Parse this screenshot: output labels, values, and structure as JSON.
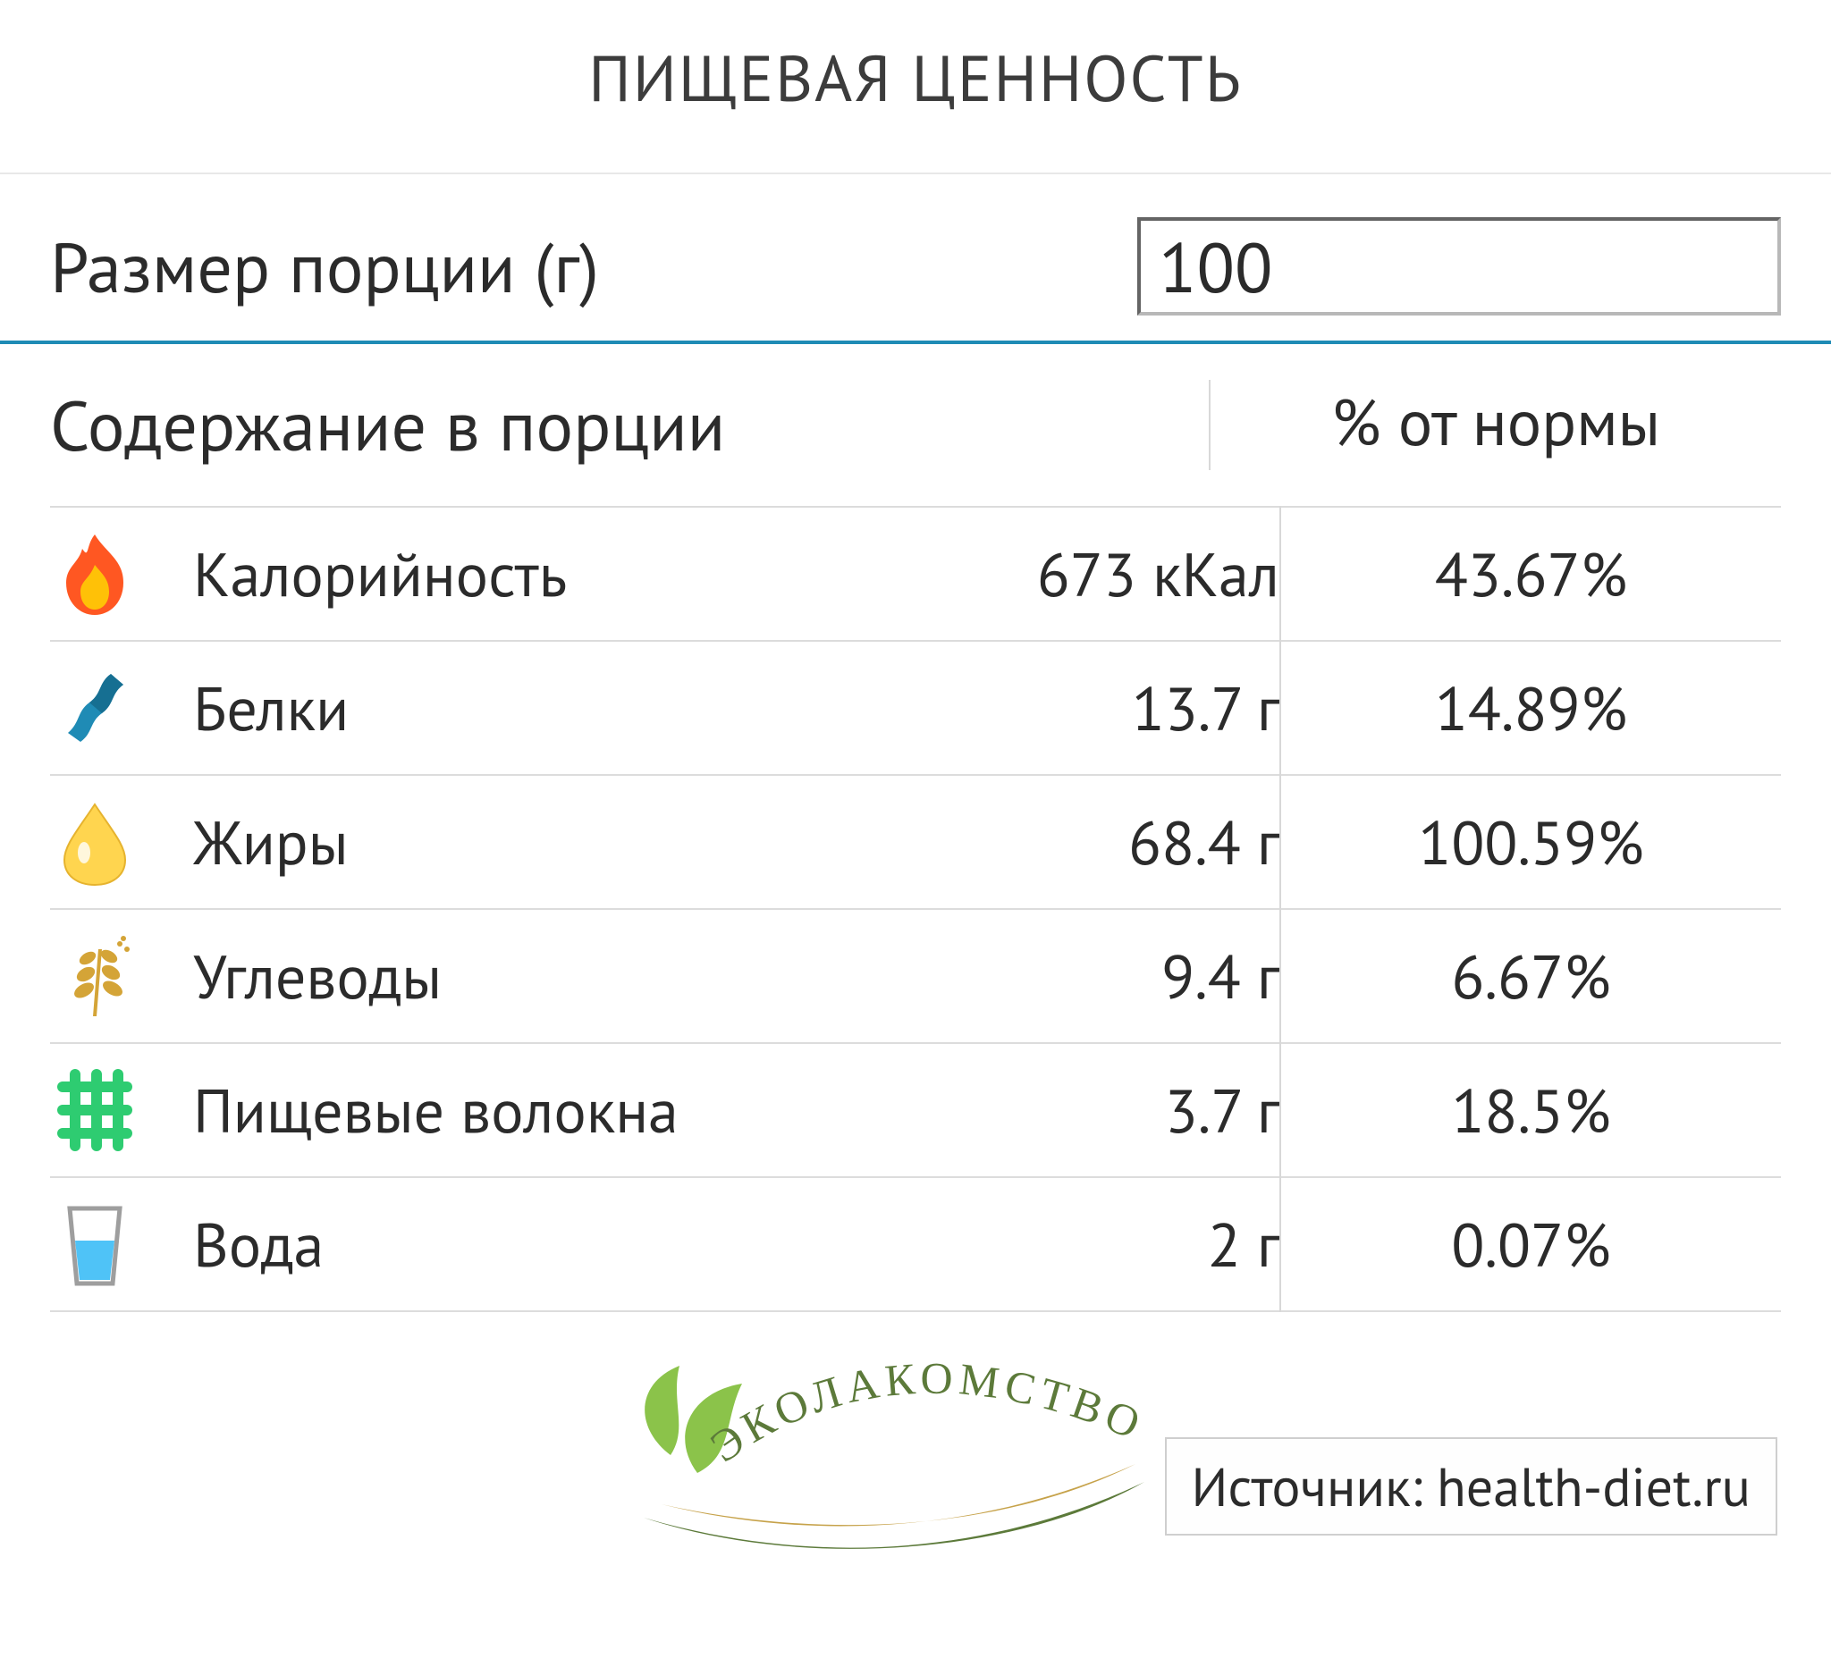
{
  "title": "ПИЩЕВАЯ ЦЕННОСТЬ",
  "portion": {
    "label": "Размер порции (г)",
    "value": "100"
  },
  "columns": {
    "content": "Содержание в порции",
    "percent": "% от нормы"
  },
  "accent_color": "#1f8bb5",
  "border_color": "#dcdcdc",
  "nutrients": [
    {
      "icon": "flame",
      "name": "Калорийность",
      "value": "673 кКал",
      "percent": "43.67%"
    },
    {
      "icon": "helix",
      "name": "Белки",
      "value": "13.7 г",
      "percent": "14.89%"
    },
    {
      "icon": "drop",
      "name": "Жиры",
      "value": "68.4 г",
      "percent": "100.59%"
    },
    {
      "icon": "wheat",
      "name": "Углеводы",
      "value": "9.4 г",
      "percent": "6.67%"
    },
    {
      "icon": "fiber",
      "name": "Пищевые волокна",
      "value": "3.7 г",
      "percent": "18.5%"
    },
    {
      "icon": "glass",
      "name": "Вода",
      "value": "2 г",
      "percent": "0.07%"
    }
  ],
  "icon_colors": {
    "flame_outer": "#ff5722",
    "flame_inner": "#ffc107",
    "helix": "#1f8bb5",
    "drop_fill": "#ffd54f",
    "drop_hl": "#ffffff",
    "wheat": "#d4a437",
    "fiber": "#2ecc71",
    "glass_line": "#9e9e9e",
    "glass_water": "#4fc3f7"
  },
  "watermark": {
    "text": "ЭКОЛАКОМСТВО",
    "leaf_color": "#8bc34a",
    "swoosh_top": "#c6a24a",
    "swoosh_bottom": "#5c7a3a"
  },
  "source": {
    "label": "Источник: health-diet.ru"
  }
}
